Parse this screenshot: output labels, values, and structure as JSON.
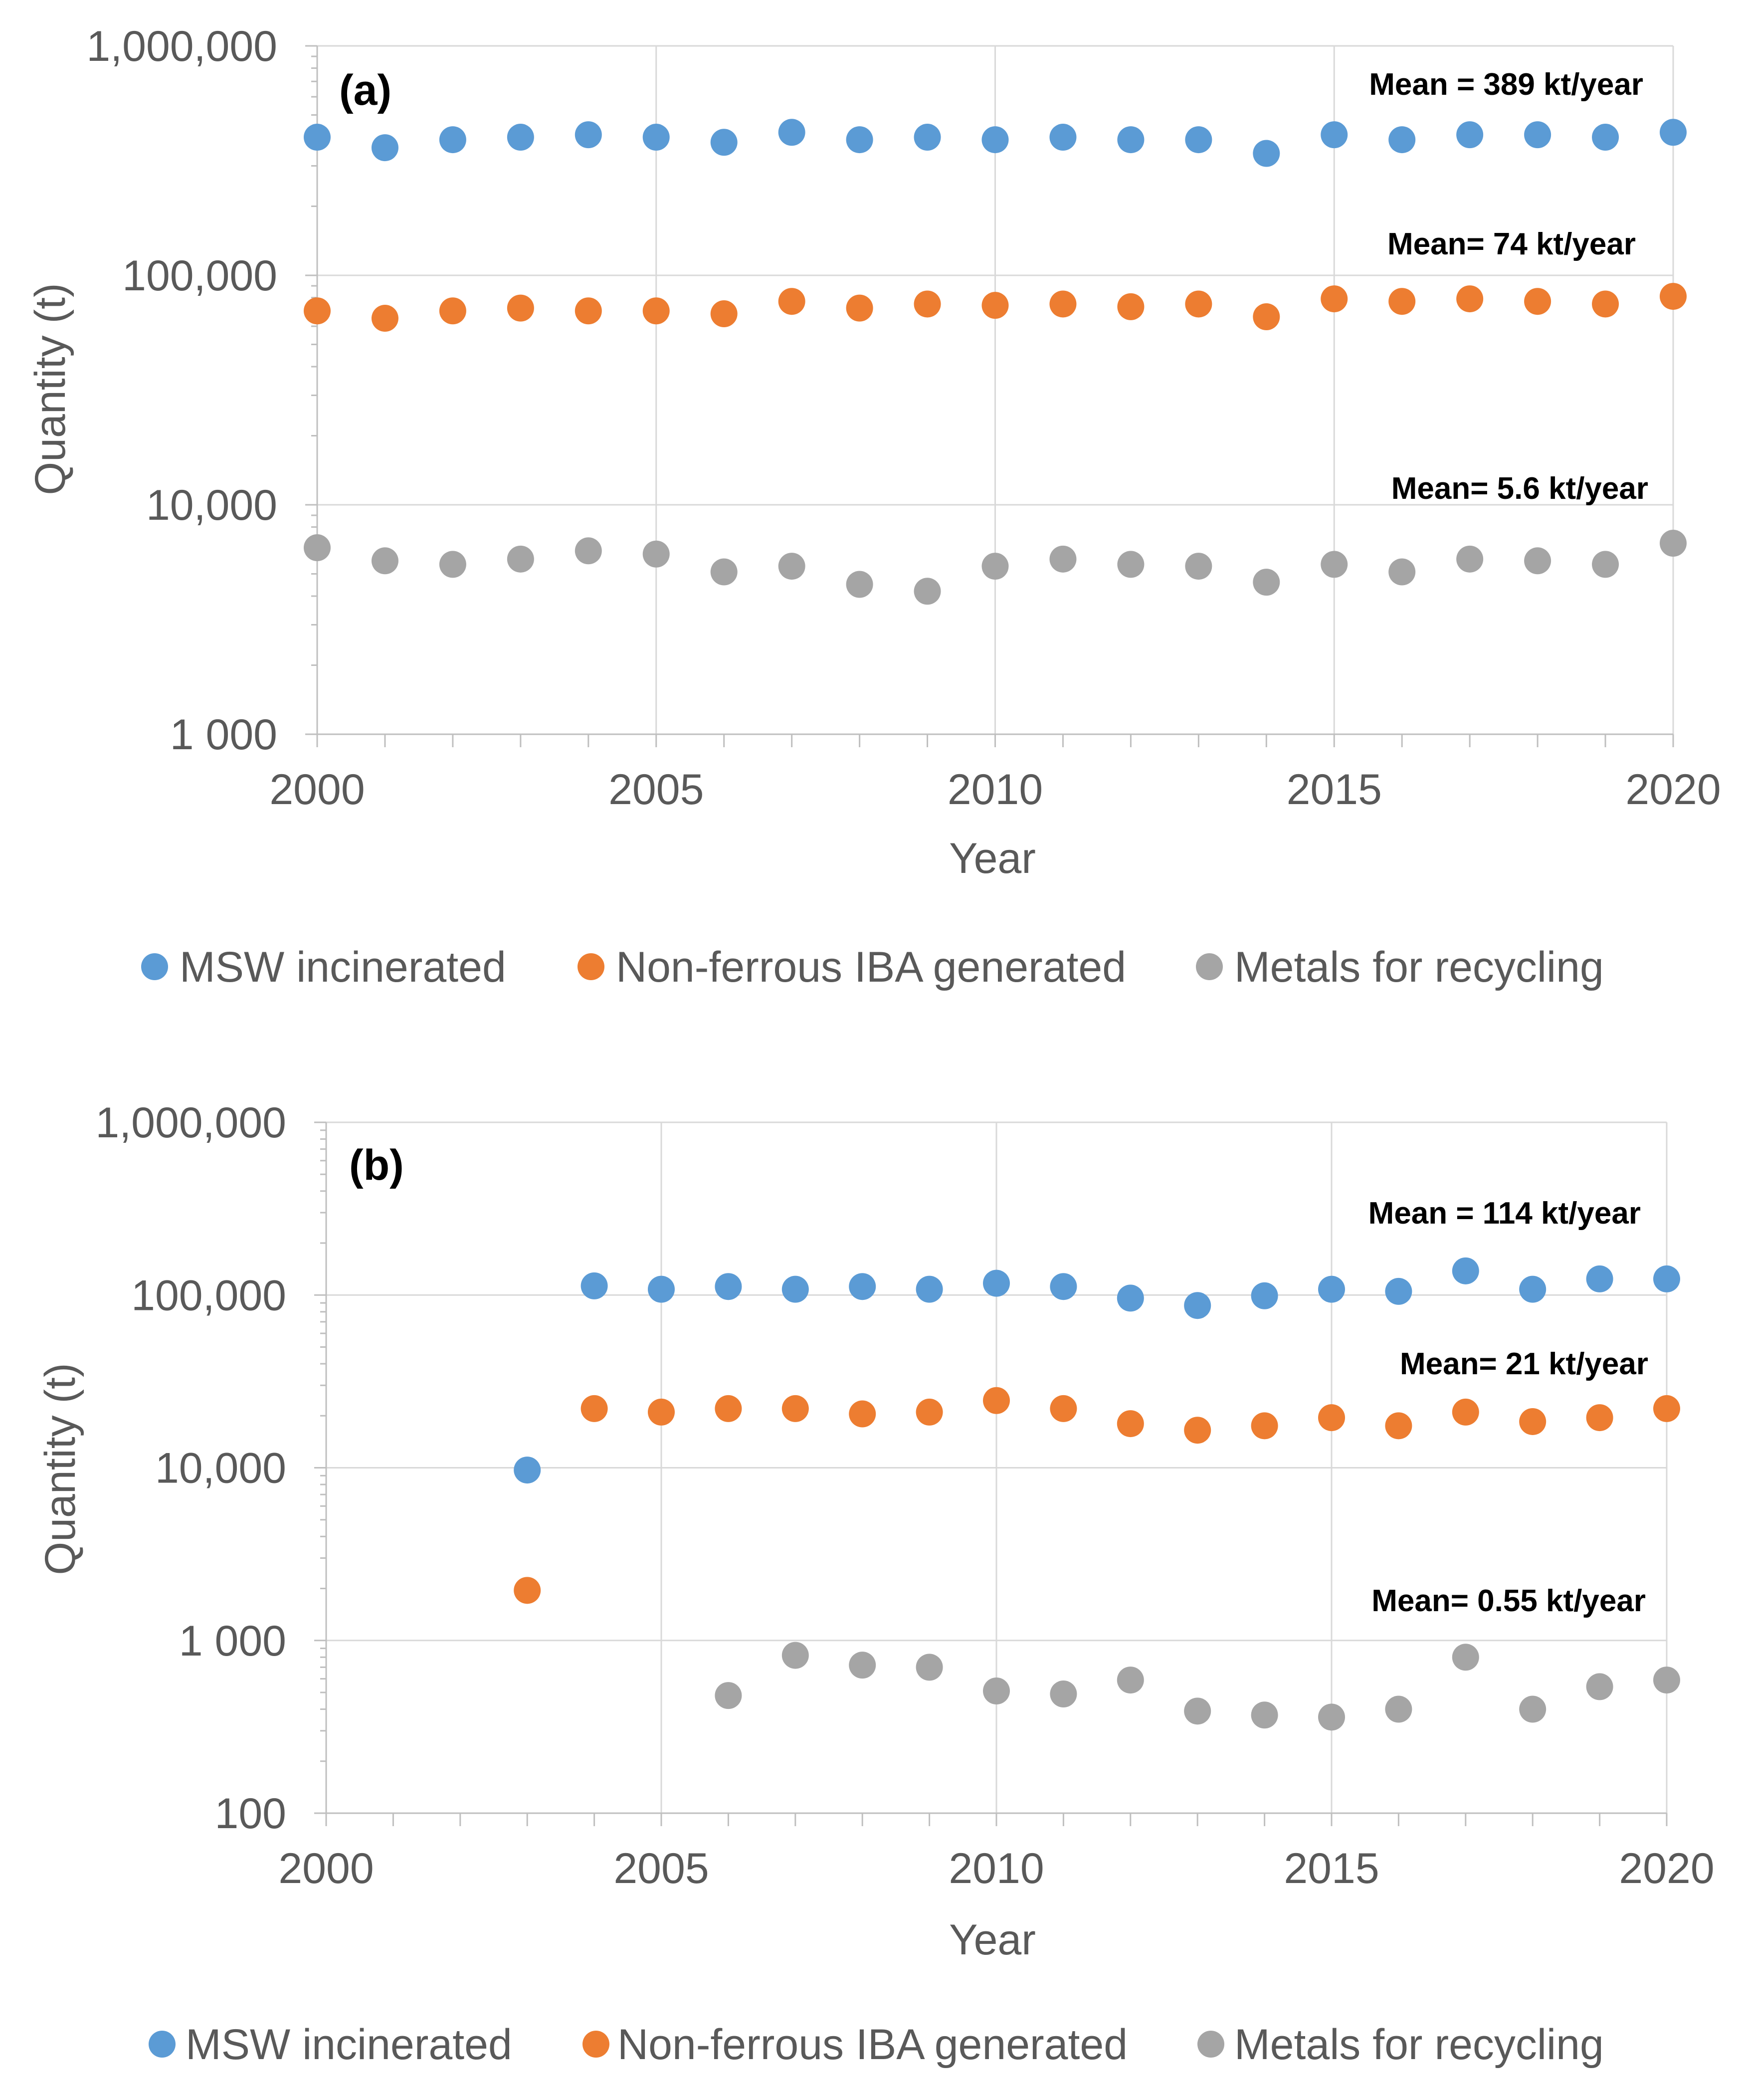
{
  "colors": {
    "msw": "#5B9BD5",
    "iba": "#ED7D31",
    "metals": "#A5A5A5",
    "grid": "#D9D9D9",
    "axis": "#BFBFBF",
    "text": "#595959"
  },
  "chart_data": [
    {
      "type": "scatter",
      "panel_label": "(a)",
      "xlabel": "Year",
      "ylabel": "Quantity (t)",
      "yscale": "log",
      "ylim": [
        1000,
        1000000
      ],
      "y_tick_labels": [
        "1 000",
        "10,000",
        "100,000",
        "1,000,000"
      ],
      "xlim": [
        2000,
        2020
      ],
      "x_tick_labels": [
        "2000",
        "2005",
        "2010",
        "2015",
        "2020"
      ],
      "x": [
        2000,
        2001,
        2002,
        2003,
        2004,
        2005,
        2006,
        2007,
        2008,
        2009,
        2010,
        2011,
        2012,
        2013,
        2014,
        2015,
        2016,
        2017,
        2018,
        2019,
        2020
      ],
      "series": [
        {
          "name": "MSW incinerated",
          "values": [
            400000,
            360000,
            390000,
            400000,
            410000,
            400000,
            380000,
            420000,
            390000,
            400000,
            390000,
            400000,
            390000,
            390000,
            340000,
            410000,
            390000,
            410000,
            410000,
            400000,
            420000
          ]
        },
        {
          "name": "Non-ferrous IBA generated",
          "values": [
            70000,
            65000,
            70000,
            72000,
            70000,
            70000,
            68000,
            77000,
            72000,
            75000,
            74000,
            75000,
            73000,
            75000,
            66000,
            79000,
            77000,
            79000,
            77000,
            75000,
            81000
          ]
        },
        {
          "name": "Metals for recycling",
          "values": [
            6500,
            5700,
            5500,
            5800,
            6300,
            6100,
            5100,
            5400,
            4500,
            4200,
            5400,
            5800,
            5500,
            5400,
            4600,
            5500,
            5100,
            5800,
            5700,
            5500,
            6800
          ]
        }
      ],
      "annotations": [
        "Mean = 389 kt/year",
        "Mean= 74 kt/year",
        "Mean= 5.6 kt/year"
      ],
      "legend": [
        "MSW incinerated",
        "Non-ferrous IBA generated",
        "Metals for recycling"
      ]
    },
    {
      "type": "scatter",
      "panel_label": "(b)",
      "xlabel": "Year",
      "ylabel": "Quantity (t)",
      "yscale": "log",
      "ylim": [
        100,
        1000000
      ],
      "y_tick_labels": [
        "100",
        "1 000",
        "10,000",
        "100,000",
        "1,000,000"
      ],
      "xlim": [
        2000,
        2020
      ],
      "x_tick_labels": [
        "2000",
        "2005",
        "2010",
        "2015",
        "2020"
      ],
      "x": [
        2003,
        2004,
        2005,
        2006,
        2007,
        2008,
        2009,
        2010,
        2011,
        2012,
        2013,
        2014,
        2015,
        2016,
        2017,
        2018,
        2019,
        2020
      ],
      "series": [
        {
          "name": "MSW incinerated",
          "values": [
            9700,
            113000,
            108000,
            112000,
            108000,
            112000,
            108000,
            117000,
            112000,
            96000,
            87000,
            99000,
            108000,
            105000,
            138000,
            108000,
            124000,
            124000
          ]
        },
        {
          "name": "Non-ferrous IBA generated",
          "values": [
            1950,
            22000,
            21000,
            22000,
            22000,
            20500,
            21000,
            24500,
            22000,
            18000,
            16500,
            17500,
            19500,
            17500,
            21000,
            18500,
            19500,
            22000
          ]
        },
        {
          "name": "Metals for recycling",
          "values": [
            null,
            null,
            null,
            480,
            820,
            720,
            700,
            510,
            490,
            590,
            390,
            370,
            360,
            400,
            800,
            400,
            540,
            590
          ]
        }
      ],
      "annotations": [
        "Mean = 114 kt/year",
        "Mean= 21 kt/year",
        "Mean=  0.55 kt/year"
      ],
      "legend": [
        "MSW incinerated",
        "Non-ferrous IBA generated",
        "Metals for recycling"
      ]
    }
  ]
}
